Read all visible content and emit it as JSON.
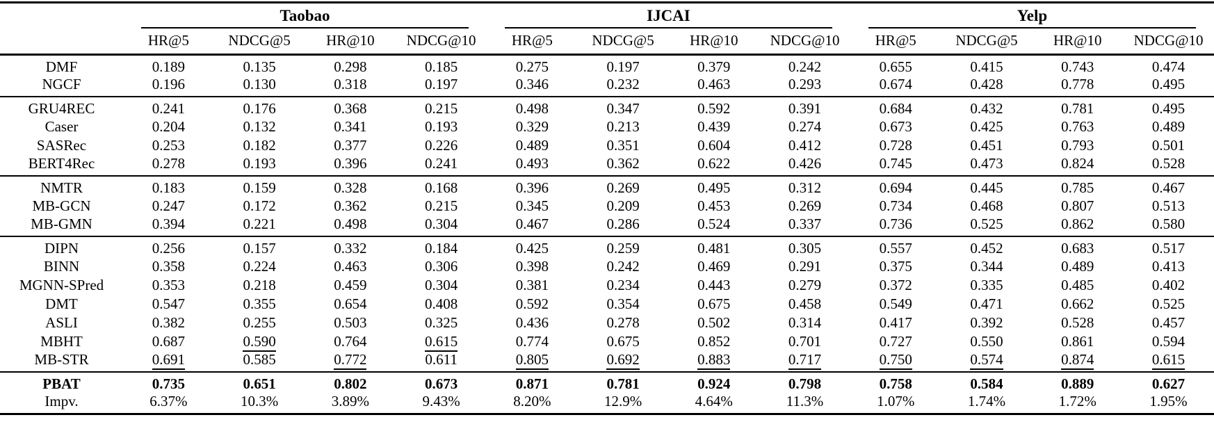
{
  "colors": {
    "background": "#ffffff",
    "text": "#000000",
    "rule": "#000000"
  },
  "table": {
    "groups": [
      {
        "label": "Taobao"
      },
      {
        "label": "IJCAI"
      },
      {
        "label": "Yelp"
      }
    ],
    "metrics": [
      "HR@5",
      "NDCG@5",
      "HR@10",
      "NDCG@10"
    ],
    "sections": [
      {
        "name": "cf-models",
        "rows": [
          {
            "method": "DMF",
            "values": [
              "0.189",
              "0.135",
              "0.298",
              "0.185",
              "0.275",
              "0.197",
              "0.379",
              "0.242",
              "0.655",
              "0.415",
              "0.743",
              "0.474"
            ]
          },
          {
            "method": "NGCF",
            "values": [
              "0.196",
              "0.130",
              "0.318",
              "0.197",
              "0.346",
              "0.232",
              "0.463",
              "0.293",
              "0.674",
              "0.428",
              "0.778",
              "0.495"
            ]
          }
        ]
      },
      {
        "name": "sequential-models",
        "rows": [
          {
            "method": "GRU4REC",
            "values": [
              "0.241",
              "0.176",
              "0.368",
              "0.215",
              "0.498",
              "0.347",
              "0.592",
              "0.391",
              "0.684",
              "0.432",
              "0.781",
              "0.495"
            ]
          },
          {
            "method": "Caser",
            "values": [
              "0.204",
              "0.132",
              "0.341",
              "0.193",
              "0.329",
              "0.213",
              "0.439",
              "0.274",
              "0.673",
              "0.425",
              "0.763",
              "0.489"
            ]
          },
          {
            "method": "SASRec",
            "values": [
              "0.253",
              "0.182",
              "0.377",
              "0.226",
              "0.489",
              "0.351",
              "0.604",
              "0.412",
              "0.728",
              "0.451",
              "0.793",
              "0.501"
            ]
          },
          {
            "method": "BERT4Rec",
            "values": [
              "0.278",
              "0.193",
              "0.396",
              "0.241",
              "0.493",
              "0.362",
              "0.622",
              "0.426",
              "0.745",
              "0.473",
              "0.824",
              "0.528"
            ]
          }
        ]
      },
      {
        "name": "multi-behavior-models",
        "rows": [
          {
            "method": "NMTR",
            "values": [
              "0.183",
              "0.159",
              "0.328",
              "0.168",
              "0.396",
              "0.269",
              "0.495",
              "0.312",
              "0.694",
              "0.445",
              "0.785",
              "0.467"
            ]
          },
          {
            "method": "MB-GCN",
            "values": [
              "0.247",
              "0.172",
              "0.362",
              "0.215",
              "0.345",
              "0.209",
              "0.453",
              "0.269",
              "0.734",
              "0.468",
              "0.807",
              "0.513"
            ]
          },
          {
            "method": "MB-GMN",
            "values": [
              "0.394",
              "0.221",
              "0.498",
              "0.304",
              "0.467",
              "0.286",
              "0.524",
              "0.337",
              "0.736",
              "0.525",
              "0.862",
              "0.580"
            ]
          }
        ]
      },
      {
        "name": "multi-behavior-sequential-models",
        "rows": [
          {
            "method": "DIPN",
            "values": [
              "0.256",
              "0.157",
              "0.332",
              "0.184",
              "0.425",
              "0.259",
              "0.481",
              "0.305",
              "0.557",
              "0.452",
              "0.683",
              "0.517"
            ]
          },
          {
            "method": "BINN",
            "values": [
              "0.358",
              "0.224",
              "0.463",
              "0.306",
              "0.398",
              "0.242",
              "0.469",
              "0.291",
              "0.375",
              "0.344",
              "0.489",
              "0.413"
            ]
          },
          {
            "method": "MGNN-SPred",
            "values": [
              "0.353",
              "0.218",
              "0.459",
              "0.304",
              "0.381",
              "0.234",
              "0.443",
              "0.279",
              "0.372",
              "0.335",
              "0.485",
              "0.402"
            ]
          },
          {
            "method": "DMT",
            "values": [
              "0.547",
              "0.355",
              "0.654",
              "0.408",
              "0.592",
              "0.354",
              "0.675",
              "0.458",
              "0.549",
              "0.471",
              "0.662",
              "0.525"
            ]
          },
          {
            "method": "ASLI",
            "values": [
              "0.382",
              "0.255",
              "0.503",
              "0.325",
              "0.436",
              "0.278",
              "0.502",
              "0.314",
              "0.417",
              "0.392",
              "0.528",
              "0.457"
            ]
          },
          {
            "method": "MBHT",
            "values": [
              "0.687",
              "0.590",
              "0.764",
              "0.615",
              "0.774",
              "0.675",
              "0.852",
              "0.701",
              "0.727",
              "0.550",
              "0.861",
              "0.594"
            ],
            "underline": [
              1,
              3
            ]
          },
          {
            "method": "MB-STR",
            "values": [
              "0.691",
              "0.585",
              "0.772",
              "0.611",
              "0.805",
              "0.692",
              "0.883",
              "0.717",
              "0.750",
              "0.574",
              "0.874",
              "0.615"
            ],
            "underline": [
              0,
              2,
              4,
              5,
              6,
              7,
              8,
              9,
              10,
              11
            ]
          }
        ]
      },
      {
        "name": "proposed-model",
        "rows": [
          {
            "method": "PBAT",
            "values": [
              "0.735",
              "0.651",
              "0.802",
              "0.673",
              "0.871",
              "0.781",
              "0.924",
              "0.798",
              "0.758",
              "0.584",
              "0.889",
              "0.627"
            ],
            "bold": true
          },
          {
            "method": "Impv.",
            "values": [
              "6.37%",
              "10.3%",
              "3.89%",
              "9.43%",
              "8.20%",
              "12.9%",
              "4.64%",
              "11.3%",
              "1.07%",
              "1.74%",
              "1.72%",
              "1.95%"
            ]
          }
        ]
      }
    ]
  }
}
